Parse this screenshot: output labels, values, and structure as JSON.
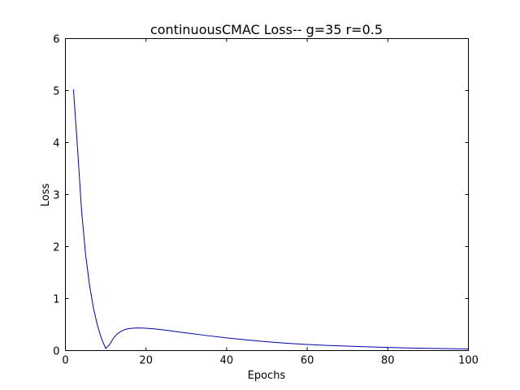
{
  "chart_data": {
    "type": "line",
    "title": "continuousCMAC Loss-- g=35 r=0.5",
    "xlabel": "Epochs",
    "ylabel": "Loss",
    "xlim": [
      0,
      100
    ],
    "ylim": [
      0,
      6
    ],
    "xticks": [
      0,
      20,
      40,
      60,
      80,
      100
    ],
    "yticks": [
      0,
      1,
      2,
      3,
      4,
      5,
      6
    ],
    "grid": false,
    "series": [
      {
        "color": "#0000aa",
        "x": [
          2,
          3,
          4,
          5,
          6,
          7,
          8,
          9,
          10,
          11,
          12,
          13,
          14,
          15,
          16,
          17,
          18,
          19,
          20,
          22,
          24,
          26,
          28,
          30,
          35,
          40,
          45,
          50,
          55,
          60,
          65,
          70,
          75,
          80,
          85,
          90,
          95,
          100
        ],
        "y": [
          5.02,
          3.9,
          2.7,
          1.85,
          1.25,
          0.8,
          0.47,
          0.22,
          0.04,
          0.12,
          0.25,
          0.33,
          0.38,
          0.41,
          0.425,
          0.432,
          0.435,
          0.434,
          0.43,
          0.418,
          0.4,
          0.38,
          0.36,
          0.34,
          0.29,
          0.245,
          0.205,
          0.17,
          0.14,
          0.118,
          0.1,
          0.085,
          0.072,
          0.06,
          0.05,
          0.043,
          0.037,
          0.032
        ]
      }
    ]
  }
}
